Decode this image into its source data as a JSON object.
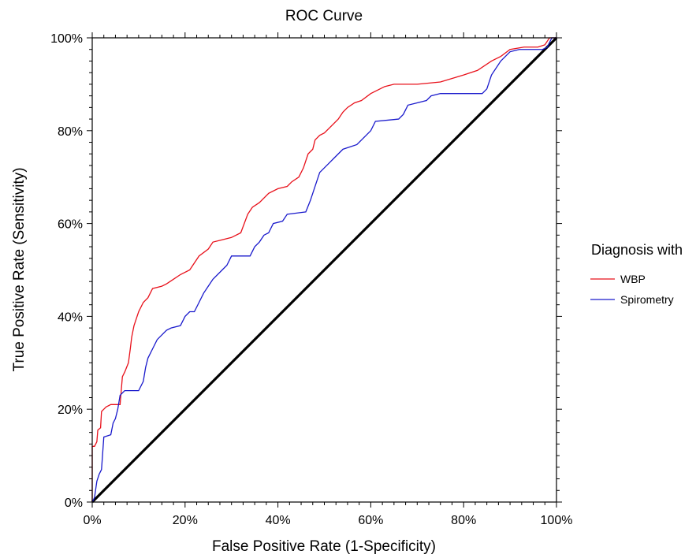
{
  "chart_data": {
    "type": "line",
    "title": "ROC Curve",
    "xlabel": "False Positive Rate (1-Specificity)",
    "ylabel": "True Positive Rate (Sensitivity)",
    "xlim": [
      0,
      1
    ],
    "ylim": [
      0,
      1
    ],
    "x_ticks": [
      "0%",
      "20%",
      "40%",
      "60%",
      "80%",
      "100%"
    ],
    "y_ticks": [
      "0%",
      "20%",
      "40%",
      "60%",
      "80%",
      "100%"
    ],
    "grid": false,
    "legend": {
      "title": "Diagnosis with",
      "placement": "right",
      "entries": [
        "WBP",
        "Spirometry"
      ]
    },
    "diagonal": {
      "x": [
        0,
        1
      ],
      "y": [
        0,
        1
      ],
      "color": "#000000"
    },
    "series": [
      {
        "name": "WBP",
        "color": "#e8101a",
        "points": [
          [
            0,
            0
          ],
          [
            0,
            0.12
          ],
          [
            0.005,
            0.12
          ],
          [
            0.01,
            0.13
          ],
          [
            0.012,
            0.155
          ],
          [
            0.018,
            0.16
          ],
          [
            0.02,
            0.195
          ],
          [
            0.025,
            0.2
          ],
          [
            0.03,
            0.205
          ],
          [
            0.04,
            0.21
          ],
          [
            0.06,
            0.21
          ],
          [
            0.065,
            0.27
          ],
          [
            0.07,
            0.28
          ],
          [
            0.078,
            0.3
          ],
          [
            0.082,
            0.33
          ],
          [
            0.085,
            0.355
          ],
          [
            0.09,
            0.38
          ],
          [
            0.095,
            0.395
          ],
          [
            0.1,
            0.41
          ],
          [
            0.11,
            0.43
          ],
          [
            0.12,
            0.44
          ],
          [
            0.13,
            0.46
          ],
          [
            0.15,
            0.465
          ],
          [
            0.16,
            0.47
          ],
          [
            0.175,
            0.48
          ],
          [
            0.19,
            0.49
          ],
          [
            0.21,
            0.5
          ],
          [
            0.23,
            0.53
          ],
          [
            0.25,
            0.545
          ],
          [
            0.26,
            0.56
          ],
          [
            0.28,
            0.565
          ],
          [
            0.3,
            0.57
          ],
          [
            0.32,
            0.58
          ],
          [
            0.335,
            0.62
          ],
          [
            0.345,
            0.635
          ],
          [
            0.36,
            0.645
          ],
          [
            0.38,
            0.665
          ],
          [
            0.4,
            0.675
          ],
          [
            0.42,
            0.68
          ],
          [
            0.43,
            0.69
          ],
          [
            0.445,
            0.7
          ],
          [
            0.455,
            0.72
          ],
          [
            0.465,
            0.75
          ],
          [
            0.475,
            0.76
          ],
          [
            0.48,
            0.78
          ],
          [
            0.49,
            0.79
          ],
          [
            0.5,
            0.795
          ],
          [
            0.515,
            0.81
          ],
          [
            0.53,
            0.825
          ],
          [
            0.54,
            0.84
          ],
          [
            0.55,
            0.85
          ],
          [
            0.565,
            0.86
          ],
          [
            0.58,
            0.865
          ],
          [
            0.6,
            0.88
          ],
          [
            0.63,
            0.895
          ],
          [
            0.65,
            0.9
          ],
          [
            0.7,
            0.9
          ],
          [
            0.75,
            0.905
          ],
          [
            0.8,
            0.92
          ],
          [
            0.83,
            0.93
          ],
          [
            0.86,
            0.95
          ],
          [
            0.88,
            0.96
          ],
          [
            0.9,
            0.975
          ],
          [
            0.93,
            0.98
          ],
          [
            0.96,
            0.98
          ],
          [
            0.975,
            0.985
          ],
          [
            0.985,
            1.0
          ],
          [
            1,
            1
          ]
        ]
      },
      {
        "name": "Spirometry",
        "color": "#1a1acc",
        "points": [
          [
            0,
            0
          ],
          [
            0.005,
            0.01
          ],
          [
            0.01,
            0.045
          ],
          [
            0.015,
            0.06
          ],
          [
            0.02,
            0.07
          ],
          [
            0.025,
            0.14
          ],
          [
            0.04,
            0.145
          ],
          [
            0.045,
            0.17
          ],
          [
            0.05,
            0.18
          ],
          [
            0.055,
            0.2
          ],
          [
            0.06,
            0.23
          ],
          [
            0.07,
            0.24
          ],
          [
            0.1,
            0.24
          ],
          [
            0.11,
            0.26
          ],
          [
            0.115,
            0.29
          ],
          [
            0.12,
            0.31
          ],
          [
            0.13,
            0.33
          ],
          [
            0.14,
            0.35
          ],
          [
            0.15,
            0.36
          ],
          [
            0.16,
            0.37
          ],
          [
            0.17,
            0.375
          ],
          [
            0.19,
            0.38
          ],
          [
            0.2,
            0.4
          ],
          [
            0.21,
            0.41
          ],
          [
            0.22,
            0.41
          ],
          [
            0.23,
            0.43
          ],
          [
            0.24,
            0.45
          ],
          [
            0.25,
            0.465
          ],
          [
            0.26,
            0.48
          ],
          [
            0.28,
            0.5
          ],
          [
            0.29,
            0.51
          ],
          [
            0.3,
            0.53
          ],
          [
            0.34,
            0.53
          ],
          [
            0.35,
            0.55
          ],
          [
            0.36,
            0.56
          ],
          [
            0.37,
            0.575
          ],
          [
            0.38,
            0.58
          ],
          [
            0.39,
            0.6
          ],
          [
            0.41,
            0.605
          ],
          [
            0.42,
            0.62
          ],
          [
            0.46,
            0.625
          ],
          [
            0.47,
            0.65
          ],
          [
            0.48,
            0.68
          ],
          [
            0.49,
            0.71
          ],
          [
            0.5,
            0.72
          ],
          [
            0.51,
            0.73
          ],
          [
            0.52,
            0.74
          ],
          [
            0.54,
            0.76
          ],
          [
            0.57,
            0.77
          ],
          [
            0.58,
            0.78
          ],
          [
            0.59,
            0.79
          ],
          [
            0.6,
            0.8
          ],
          [
            0.61,
            0.82
          ],
          [
            0.66,
            0.825
          ],
          [
            0.67,
            0.835
          ],
          [
            0.68,
            0.855
          ],
          [
            0.7,
            0.86
          ],
          [
            0.72,
            0.865
          ],
          [
            0.73,
            0.875
          ],
          [
            0.75,
            0.88
          ],
          [
            0.84,
            0.88
          ],
          [
            0.85,
            0.89
          ],
          [
            0.86,
            0.92
          ],
          [
            0.88,
            0.95
          ],
          [
            0.9,
            0.97
          ],
          [
            0.92,
            0.975
          ],
          [
            0.97,
            0.975
          ],
          [
            0.98,
            0.98
          ],
          [
            0.99,
            1.0
          ],
          [
            1,
            1
          ]
        ]
      }
    ]
  }
}
